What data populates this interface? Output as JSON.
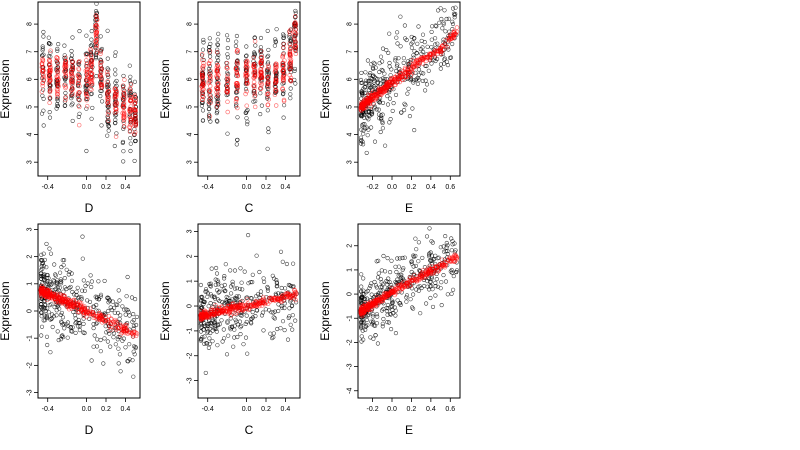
{
  "chart_data": [
    {
      "type": "scatter",
      "xlabel": "D",
      "ylabel": "Expression",
      "xlim": [
        -0.5,
        0.55
      ],
      "ylim": [
        2.5,
        8.8
      ],
      "xticks": [
        -0.4,
        0.0,
        0.2,
        0.4
      ],
      "yticks": [
        3,
        4,
        5,
        6,
        7,
        8
      ],
      "groups_x": [
        -0.45,
        -0.38,
        -0.3,
        -0.22,
        -0.15,
        -0.08,
        0.0,
        0.05,
        0.1,
        0.15,
        0.22,
        0.3,
        0.38,
        0.45,
        0.5
      ],
      "fit_y": [
        6.25,
        6.2,
        6.15,
        6.1,
        6.05,
        6.0,
        5.95,
        6.3,
        7.7,
        6.3,
        5.3,
        5.1,
        5.0,
        4.8,
        4.7
      ],
      "obs_sd": 0.75,
      "obs_count": 380,
      "points_color": "#000000",
      "fit_color": "#ff0000"
    },
    {
      "type": "scatter",
      "xlabel": "C",
      "ylabel": "Expression",
      "xlim": [
        -0.5,
        0.55
      ],
      "ylim": [
        2.5,
        8.8
      ],
      "xticks": [
        -0.4,
        0.0,
        0.2,
        0.4
      ],
      "yticks": [
        3,
        4,
        5,
        6,
        7,
        8
      ],
      "groups_x": [
        -0.45,
        -0.38,
        -0.3,
        -0.2,
        -0.1,
        0.0,
        0.08,
        0.15,
        0.22,
        0.3,
        0.38,
        0.45,
        0.5
      ],
      "fit_y": [
        5.9,
        5.95,
        6.0,
        5.8,
        5.9,
        6.0,
        6.1,
        6.2,
        6.0,
        6.1,
        6.3,
        6.6,
        7.6
      ],
      "obs_sd": 0.8,
      "obs_count": 340,
      "points_color": "#000000",
      "fit_color": "#ff0000"
    },
    {
      "type": "scatter",
      "xlabel": "E",
      "ylabel": "Expression",
      "xlim": [
        -0.35,
        0.7
      ],
      "ylim": [
        2.5,
        8.8
      ],
      "xticks": [
        -0.2,
        0.0,
        0.2,
        0.4,
        0.6
      ],
      "yticks": [
        3,
        4,
        5,
        6,
        7,
        8
      ],
      "fit_line": [
        [
          -0.32,
          5.0
        ],
        [
          0.0,
          5.9
        ],
        [
          0.1,
          6.1
        ],
        [
          0.3,
          6.7
        ],
        [
          0.5,
          7.1
        ],
        [
          0.65,
          7.7
        ]
      ],
      "obs_sd": 0.7,
      "obs_count": 380,
      "points_color": "#000000",
      "fit_color": "#ff0000"
    },
    {
      "type": "scatter",
      "xlabel": "D",
      "ylabel": "Expression",
      "xlim": [
        -0.5,
        0.55
      ],
      "ylim": [
        -3.2,
        3.2
      ],
      "xticks": [
        -0.4,
        0.0,
        0.2,
        0.4
      ],
      "yticks": [
        -3,
        -2,
        -1,
        0,
        1,
        2,
        3
      ],
      "fit_line": [
        [
          -0.48,
          0.75
        ],
        [
          0.0,
          0.0
        ],
        [
          0.5,
          -0.85
        ]
      ],
      "obs_sd": 0.75,
      "obs_count": 380,
      "points_color": "#000000",
      "fit_color": "#ff0000"
    },
    {
      "type": "scatter",
      "xlabel": "C",
      "ylabel": "Expression",
      "xlim": [
        -0.5,
        0.55
      ],
      "ylim": [
        -3.7,
        3.3
      ],
      "xticks": [
        -0.4,
        0.0,
        0.2,
        0.4
      ],
      "yticks": [
        -3,
        -2,
        -1,
        0,
        1,
        2,
        3
      ],
      "fit_line": [
        [
          -0.48,
          -0.4
        ],
        [
          0.0,
          0.0
        ],
        [
          0.5,
          0.45
        ]
      ],
      "obs_sd": 0.75,
      "obs_count": 340,
      "points_color": "#000000",
      "fit_color": "#ff0000"
    },
    {
      "type": "scatter",
      "xlabel": "E",
      "ylabel": "Expression",
      "xlim": [
        -0.35,
        0.7
      ],
      "ylim": [
        -4.3,
        2.9
      ],
      "xticks": [
        -0.2,
        0.0,
        0.2,
        0.4,
        0.6
      ],
      "yticks": [
        -4,
        -3,
        -2,
        -1,
        0,
        1,
        2
      ],
      "fit_line": [
        [
          -0.33,
          -0.75
        ],
        [
          0.0,
          0.1
        ],
        [
          0.1,
          0.3
        ],
        [
          0.65,
          1.5
        ]
      ],
      "obs_sd": 0.65,
      "obs_count": 380,
      "points_color": "#000000",
      "fit_color": "#ff0000"
    }
  ]
}
